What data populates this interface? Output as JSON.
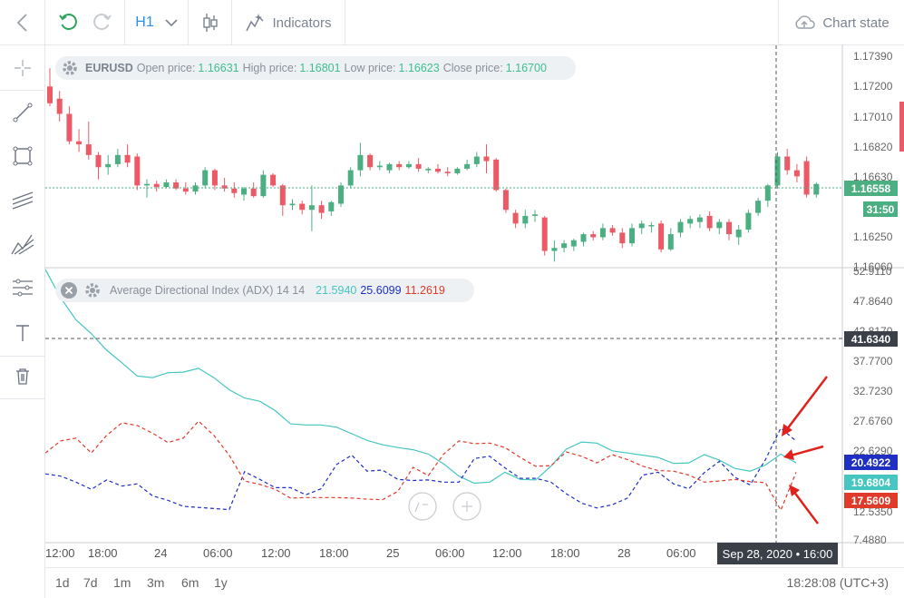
{
  "toolbar": {
    "timeframe": "H1",
    "indicators_label": "Indicators",
    "chart_state_label": "Chart state"
  },
  "price_legend": {
    "symbol": "EURUSD",
    "open_label": "Open price:",
    "open": "1.16631",
    "high_label": "High price:",
    "high": "1.16801",
    "low_label": "Low price:",
    "low": "1.16623",
    "close_label": "Close price:",
    "close": "1.16700"
  },
  "adx_legend": {
    "name": "Average Directional Index (ADX) 14 14",
    "adx": "21.5940",
    "plus_di": "25.6099",
    "minus_di": "11.2619"
  },
  "price_axis": [
    "1.17390",
    "1.17200",
    "1.17010",
    "1.16820",
    "1.16630",
    "1.16250",
    "1.16060"
  ],
  "price_tags": {
    "last_price": "1.16558",
    "countdown": "31:50"
  },
  "adx_axis": [
    "52.9110",
    "47.8640",
    "42.8170",
    "37.7700",
    "32.7230",
    "27.6760",
    "22.6290",
    "17.5820",
    "12.5350",
    "7.4880"
  ],
  "adx_tags": {
    "crosshair": "41.6340",
    "plus_di": "20.4922",
    "adx": "19.6804",
    "minus_di": "17.5609"
  },
  "time_axis": [
    "12:00",
    "18:00",
    "24",
    "06:00",
    "12:00",
    "18:00",
    "25",
    "06:00",
    "12:00",
    "18:00",
    "28",
    "06:00"
  ],
  "crosshair_time": "Sep 28, 2020 • 16:00",
  "ranges": [
    "1d",
    "7d",
    "1m",
    "3m",
    "6m",
    "1y"
  ],
  "clock": "18:28:08 (UTC+3)",
  "colors": {
    "bull": "#4caf82",
    "bear": "#ec5a66",
    "adx": "#45c6c0",
    "plus_di": "#1f2fc4",
    "minus_di": "#e03a2a",
    "accent": "#2d8fe6",
    "annotation": "#e0221c"
  },
  "chart_data": [
    {
      "type": "candlestick",
      "series": [
        {
          "name": "EURUSD",
          "values": [
            [
              1.1723,
              1.1735,
              1.171,
              1.1712
            ],
            [
              1.1715,
              1.172,
              1.17,
              1.1705
            ],
            [
              1.1705,
              1.171,
              1.1685,
              1.1687
            ],
            [
              1.1687,
              1.1695,
              1.168,
              1.1685
            ],
            [
              1.1685,
              1.17,
              1.1675,
              1.1678
            ],
            [
              1.1678,
              1.168,
              1.1662,
              1.167
            ],
            [
              1.167,
              1.1678,
              1.1665,
              1.1672
            ],
            [
              1.1672,
              1.1682,
              1.167,
              1.1678
            ],
            [
              1.1678,
              1.1685,
              1.167,
              1.1673
            ],
            [
              1.1677,
              1.1679,
              1.1655,
              1.1658
            ],
            [
              1.1658,
              1.1662,
              1.165,
              1.1659
            ],
            [
              1.1659,
              1.1661,
              1.1654,
              1.1657
            ],
            [
              1.1657,
              1.1662,
              1.1656,
              1.166
            ],
            [
              1.166,
              1.1662,
              1.1655,
              1.1656
            ],
            [
              1.1656,
              1.166,
              1.1652,
              1.1654
            ],
            [
              1.1654,
              1.166,
              1.1652,
              1.1658
            ],
            [
              1.1658,
              1.167,
              1.1656,
              1.1668
            ],
            [
              1.1668,
              1.1669,
              1.1655,
              1.1658
            ],
            [
              1.1658,
              1.1663,
              1.1654,
              1.1656
            ],
            [
              1.1656,
              1.166,
              1.165,
              1.1653
            ],
            [
              1.1652,
              1.1657,
              1.1648,
              1.1656
            ],
            [
              1.1656,
              1.166,
              1.165,
              1.1651
            ],
            [
              1.1651,
              1.1668,
              1.165,
              1.1665
            ],
            [
              1.1665,
              1.1666,
              1.1657,
              1.1658
            ],
            [
              1.1658,
              1.1659,
              1.1638,
              1.1645
            ],
            [
              1.1645,
              1.1649,
              1.1642,
              1.1646
            ],
            [
              1.1646,
              1.1648,
              1.1639,
              1.1642
            ],
            [
              1.1642,
              1.1658,
              1.1628,
              1.1645
            ],
            [
              1.1645,
              1.1648,
              1.1636,
              1.164
            ],
            [
              1.1641,
              1.1648,
              1.1638,
              1.1647
            ],
            [
              1.1646,
              1.166,
              1.1644,
              1.1658
            ],
            [
              1.1658,
              1.167,
              1.1656,
              1.1668
            ],
            [
              1.1668,
              1.1686,
              1.1664,
              1.1678
            ],
            [
              1.1678,
              1.1679,
              1.1668,
              1.167
            ],
            [
              1.167,
              1.1674,
              1.1668,
              1.1671
            ],
            [
              1.1668,
              1.1673,
              1.1666,
              1.1672
            ],
            [
              1.1672,
              1.1674,
              1.1668,
              1.167
            ],
            [
              1.167,
              1.1674,
              1.1669,
              1.1672
            ],
            [
              1.1672,
              1.1676,
              1.1667,
              1.1669
            ],
            [
              1.1668,
              1.167,
              1.1666,
              1.1669
            ],
            [
              1.1669,
              1.1672,
              1.1666,
              1.1667
            ],
            [
              1.1667,
              1.167,
              1.1664,
              1.1666
            ],
            [
              1.1666,
              1.167,
              1.1665,
              1.1669
            ],
            [
              1.1669,
              1.1675,
              1.1668,
              1.1672
            ],
            [
              1.1672,
              1.168,
              1.167,
              1.1677
            ],
            [
              1.1677,
              1.1685,
              1.1666,
              1.1674
            ],
            [
              1.1675,
              1.1676,
              1.1654,
              1.1655
            ],
            [
              1.1655,
              1.1656,
              1.164,
              1.1642
            ],
            [
              1.164,
              1.1642,
              1.163,
              1.1633
            ],
            [
              1.1633,
              1.1642,
              1.163,
              1.1638
            ],
            [
              1.1638,
              1.1642,
              1.1634,
              1.1639
            ],
            [
              1.1637,
              1.1638,
              1.1612,
              1.1615
            ],
            [
              1.1615,
              1.1622,
              1.1608,
              1.1617
            ],
            [
              1.1617,
              1.1622,
              1.1614,
              1.162
            ],
            [
              1.1618,
              1.1623,
              1.1615,
              1.1622
            ],
            [
              1.1621,
              1.1627,
              1.1618,
              1.1626
            ],
            [
              1.1626,
              1.1628,
              1.1622,
              1.1624
            ],
            [
              1.1624,
              1.1633,
              1.1622,
              1.163
            ],
            [
              1.163,
              1.1632,
              1.1625,
              1.1627
            ],
            [
              1.1627,
              1.163,
              1.1617,
              1.162
            ],
            [
              1.162,
              1.1633,
              1.1618,
              1.163
            ],
            [
              1.163,
              1.1635,
              1.1626,
              1.1633
            ],
            [
              1.1632,
              1.1634,
              1.1627,
              1.1632
            ],
            [
              1.1633,
              1.1635,
              1.1614,
              1.1616
            ],
            [
              1.1616,
              1.163,
              1.1615,
              1.1626
            ],
            [
              1.1627,
              1.1636,
              1.1624,
              1.1634
            ],
            [
              1.1633,
              1.1638,
              1.163,
              1.1636
            ],
            [
              1.1634,
              1.1639,
              1.163,
              1.1637
            ],
            [
              1.1638,
              1.1641,
              1.1628,
              1.163
            ],
            [
              1.163,
              1.1636,
              1.1626,
              1.1634
            ],
            [
              1.1634,
              1.1636,
              1.1622,
              1.1626
            ],
            [
              1.1624,
              1.1632,
              1.1619,
              1.1629
            ],
            [
              1.1629,
              1.1642,
              1.1627,
              1.164
            ],
            [
              1.164,
              1.165,
              1.1638,
              1.1648
            ],
            [
              1.1648,
              1.1659,
              1.1644,
              1.1658
            ],
            [
              1.1658,
              1.168,
              1.1656,
              1.1677
            ],
            [
              1.1677,
              1.1682,
              1.1665,
              1.1668
            ],
            [
              1.1668,
              1.1672,
              1.166,
              1.1664
            ],
            [
              1.1674,
              1.1677,
              1.165,
              1.1652
            ],
            [
              1.1652,
              1.166,
              1.165,
              1.1659
            ]
          ]
        }
      ],
      "ylim": [
        1.1604,
        1.175
      ]
    },
    {
      "type": "line",
      "x_index": "hourly bars, same as price pane",
      "series": [
        {
          "name": "ADX",
          "values": [
            55.2,
            50.0,
            46.0,
            43.5,
            40.5,
            38.2,
            35.8,
            35.5,
            36.4,
            36.5,
            37.2,
            35.5,
            33.3,
            31.8,
            31.2,
            29.5,
            27.1,
            26.9,
            26.9,
            26.5,
            25.3,
            24.1,
            23.3,
            22.8,
            22.4,
            21.6,
            19.8,
            17.6,
            16.3,
            16.5,
            18.3,
            17.0,
            16.9,
            19.4,
            22.5,
            23.8,
            23.6,
            22.2,
            21.8,
            21.4,
            21.0,
            19.9,
            20.0,
            21.5,
            20.5,
            19.0,
            18.5,
            19.6,
            21.6,
            20.0
          ]
        },
        {
          "name": "+DI",
          "values": [
            18.0,
            17.6,
            16.5,
            15.2,
            16.9,
            15.8,
            16.2,
            14.0,
            13.2,
            12.1,
            11.9,
            11.7,
            11.5,
            18.4,
            17.0,
            15.5,
            15.5,
            14.2,
            15.3,
            19.7,
            21.4,
            18.5,
            18.7,
            17.0,
            16.8,
            16.9,
            16.5,
            16.5,
            20.8,
            21.2,
            19.1,
            17.2,
            17.2,
            16.5,
            14.4,
            12.7,
            11.8,
            12.4,
            13.6,
            17.8,
            18.3,
            16.2,
            15.3,
            18.2,
            20.3,
            17.4,
            16.0,
            20.6,
            26.3,
            24.0
          ]
        },
        {
          "name": "-DI",
          "values": [
            21.8,
            24.0,
            24.5,
            21.8,
            25.0,
            27.3,
            26.8,
            25.4,
            23.7,
            24.5,
            27.6,
            25.0,
            21.4,
            16.7,
            16.1,
            15.2,
            13.6,
            13.7,
            13.7,
            13.7,
            13.6,
            13.4,
            13.3,
            14.8,
            19.2,
            17.7,
            21.6,
            24.0,
            23.5,
            23.6,
            22.8,
            21.0,
            19.4,
            19.5,
            22.0,
            21.2,
            20.0,
            21.5,
            20.6,
            19.4,
            18.6,
            18.5,
            17.8,
            16.5,
            16.7,
            17.0,
            16.6,
            16.4,
            11.4,
            18.3
          ]
        }
      ],
      "ylim": [
        5.5,
        55.0
      ]
    }
  ]
}
